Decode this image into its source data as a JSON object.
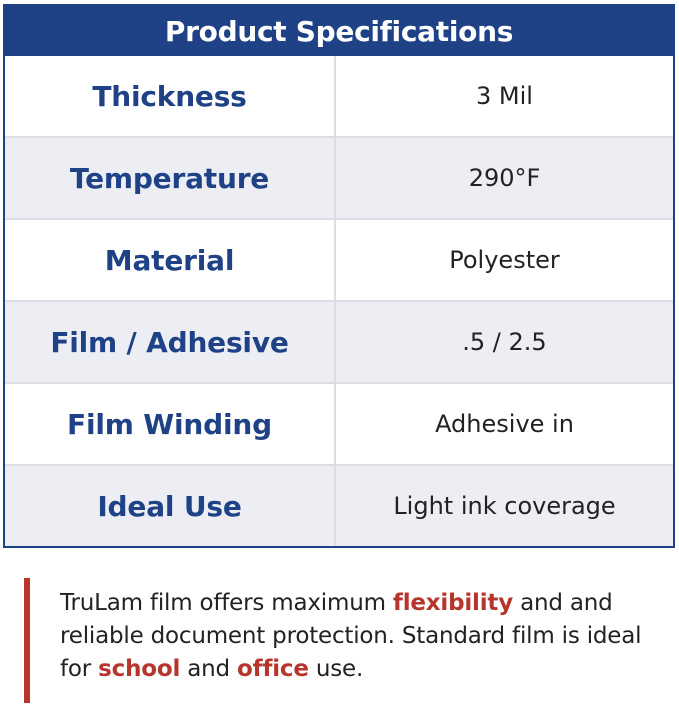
{
  "table": {
    "title": "Product Specifications",
    "rows": [
      {
        "label": "Thickness",
        "value": "3 Mil"
      },
      {
        "label": "Temperature",
        "value": "290°F"
      },
      {
        "label": "Material",
        "value": "Polyester"
      },
      {
        "label": "Film / Adhesive",
        "value": ".5 / 2.5"
      },
      {
        "label": "Film Winding",
        "value": "Adhesive in"
      },
      {
        "label": "Ideal Use",
        "value": "Light ink coverage"
      }
    ]
  },
  "note": {
    "accent_color": "#b6352c",
    "parts": [
      "TruLam film offers maximum ",
      "flexibility",
      " and and reliable document protection. Standard film is ideal for ",
      "school",
      " and ",
      "office",
      " use."
    ]
  }
}
